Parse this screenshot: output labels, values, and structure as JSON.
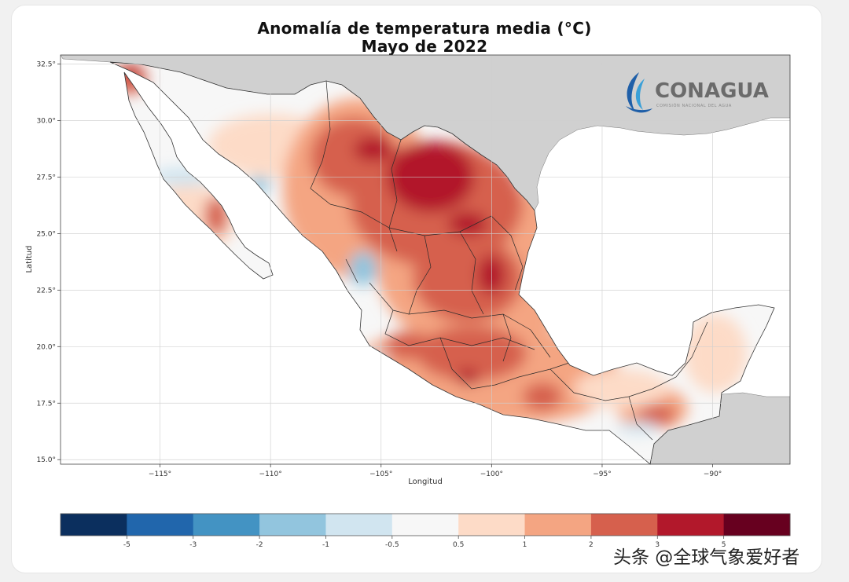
{
  "title": "Anomalía de temperatura media (°C)",
  "subtitle": "Mayo de 2022",
  "logo": {
    "name": "CONAGUA",
    "tagline": "COMISIÓN NACIONAL DEL AGUA"
  },
  "axes": {
    "xlabel": "Longitud",
    "ylabel": "Latitud",
    "xlim": [
      -119.5,
      -86.5
    ],
    "ylim": [
      14.8,
      32.9
    ],
    "xticks": [
      {
        "value": -115,
        "label": "−115°"
      },
      {
        "value": -110,
        "label": "−110°"
      },
      {
        "value": -105,
        "label": "−105°"
      },
      {
        "value": -100,
        "label": "−100°"
      },
      {
        "value": -95,
        "label": "−95°"
      },
      {
        "value": -90,
        "label": "−90°"
      }
    ],
    "yticks": [
      {
        "value": 15.0,
        "label": "15.0°"
      },
      {
        "value": 17.5,
        "label": "17.5°"
      },
      {
        "value": 20.0,
        "label": "20.0°"
      },
      {
        "value": 22.5,
        "label": "22.5°"
      },
      {
        "value": 25.0,
        "label": "25.0°"
      },
      {
        "value": 27.5,
        "label": "27.5°"
      },
      {
        "value": 30.0,
        "label": "30.0°"
      },
      {
        "value": 32.5,
        "label": "32.5°"
      }
    ]
  },
  "colorbar": {
    "colors": [
      "#0b2f5e",
      "#2166ac",
      "#4393c3",
      "#92c5de",
      "#d1e5f0",
      "#f7f7f7",
      "#fddbc7",
      "#f4a582",
      "#d6604d",
      "#b2182b",
      "#67001f"
    ],
    "labels": [
      "-5",
      "-3",
      "-2",
      "-1",
      "-0.5",
      "0.5",
      "1",
      "2",
      "3",
      "5"
    ]
  },
  "map_colors": {
    "ocean": "#ffffff",
    "neighbor_land": "#d0d0d0",
    "grid": "#dddddd"
  },
  "watermark": "头条 @全球气象爱好者"
}
